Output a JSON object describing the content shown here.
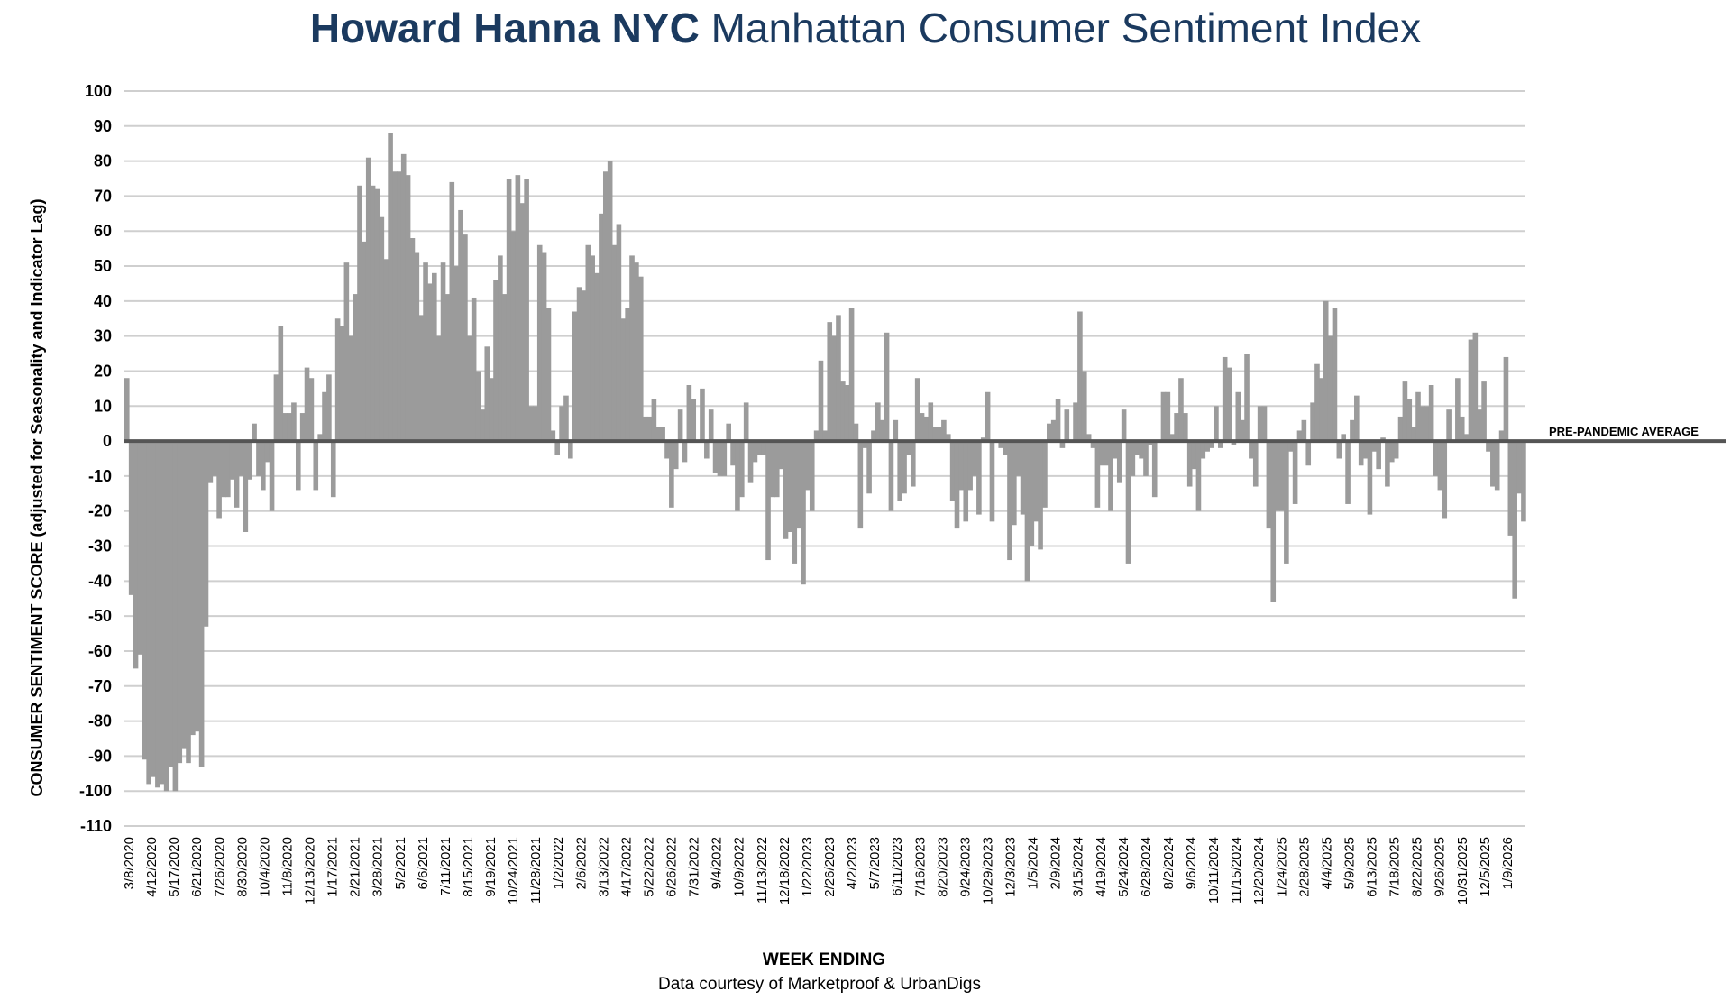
{
  "title_brand": "Howard Hanna NYC",
  "title_rest": "Manhattan Consumer Sentiment Index",
  "chart_data": {
    "type": "bar",
    "title": "Howard Hanna NYC Manhattan Consumer Sentiment Index",
    "xlabel": "WEEK ENDING",
    "ylabel": "CONSUMER SENTIMENT SCORE (adjusted for Seasonality and Indicator Lag)",
    "credit": "Data courtesy of Marketproof & UrbanDigs",
    "annotation": "PRE-PANDEMIC AVERAGE",
    "ylim": [
      -110,
      100
    ],
    "yticks": [
      100,
      90,
      80,
      70,
      60,
      50,
      40,
      30,
      20,
      10,
      0,
      -10,
      -20,
      -30,
      -40,
      -50,
      -60,
      -70,
      -80,
      -90,
      -100,
      -110
    ],
    "grid": true,
    "bar_color": "#9b9b9b",
    "baseline_color": "#555555",
    "x_tick_labels": [
      "3/8/2020",
      "4/12/2020",
      "5/17/2020",
      "6/21/2020",
      "7/26/2020",
      "8/30/2020",
      "10/4/2020",
      "11/8/2020",
      "12/13/2020",
      "1/17/2021",
      "2/21/2021",
      "3/28/2021",
      "5/2/2021",
      "6/6/2021",
      "7/11/2021",
      "8/15/2021",
      "9/19/2021",
      "10/24/2021",
      "11/28/2021",
      "1/2/2022",
      "2/6/2022",
      "3/13/2022",
      "4/17/2022",
      "5/22/2022",
      "6/26/2022",
      "7/31/2022",
      "9/4/2022",
      "10/9/2022",
      "11/13/2022",
      "12/18/2022",
      "1/22/2023",
      "2/26/2023",
      "4/2/2023",
      "5/7/2023",
      "6/11/2023",
      "7/16/2023",
      "8/20/2023",
      "9/24/2023",
      "10/29/2023",
      "12/3/2023",
      "1/5/2024",
      "2/9/2024",
      "3/15/2024",
      "4/19/2024",
      "5/24/2024",
      "6/28/2024",
      "8/2/2024",
      "9/6/2024",
      "10/11/2024",
      "11/15/2024",
      "12/20/2024",
      "1/24/2025",
      "2/28/2025",
      "4/4/2025",
      "5/9/2025",
      "6/13/2025",
      "7/18/2025",
      "8/22/2025",
      "9/26/2025",
      "10/31/2025",
      "12/5/2025",
      "1/9/2026"
    ],
    "values": [
      18,
      -44,
      -65,
      -61,
      -91,
      -98,
      -96,
      -99,
      -98,
      -100,
      -93,
      -100,
      -92,
      -88,
      -92,
      -84,
      -83,
      -93,
      -53,
      -12,
      -10,
      -22,
      -16,
      -16,
      -11,
      -19,
      -10,
      -26,
      -11,
      5,
      -10,
      -14,
      -6,
      -20,
      19,
      33,
      8,
      8,
      11,
      -14,
      8,
      21,
      18,
      -14,
      2,
      14,
      19,
      -16,
      35,
      33,
      51,
      30,
      42,
      73,
      57,
      81,
      73,
      72,
      64,
      52,
      88,
      77,
      77,
      82,
      76,
      58,
      54,
      36,
      51,
      45,
      48,
      30,
      51,
      42,
      74,
      50,
      66,
      59,
      30,
      41,
      20,
      9,
      27,
      18,
      46,
      53,
      42,
      75,
      60,
      76,
      68,
      75,
      10,
      10,
      56,
      54,
      38,
      3,
      -4,
      10,
      13,
      -5,
      37,
      44,
      43,
      56,
      53,
      48,
      65,
      77,
      80,
      56,
      62,
      35,
      38,
      53,
      51,
      47,
      7,
      7,
      12,
      4,
      4,
      -5,
      -19,
      -8,
      9,
      -6,
      16,
      12,
      0,
      15,
      -5,
      9,
      -9,
      -10,
      -10,
      5,
      -7,
      -20,
      -16,
      11,
      -12,
      -6,
      -4,
      -4,
      -34,
      -16,
      -16,
      -8,
      -28,
      -26,
      -35,
      -25,
      -41,
      -14,
      -20,
      3,
      23,
      3,
      34,
      30,
      36,
      17,
      16,
      38,
      5,
      -25,
      -2,
      -15,
      3,
      11,
      6,
      31,
      -20,
      6,
      -17,
      -15,
      -4,
      -13,
      18,
      8,
      7,
      11,
      4,
      4,
      6,
      2,
      -17,
      -25,
      -14,
      -23,
      -14,
      -10,
      -21,
      1,
      14,
      -23,
      0,
      -2,
      -4,
      -34,
      -24,
      -10,
      -21,
      -40,
      -30,
      -23,
      -31,
      -19,
      5,
      6,
      12,
      -2,
      9,
      0,
      11,
      37,
      20,
      2,
      -2,
      -19,
      -7,
      -7,
      -20,
      -5,
      -12,
      9,
      -35,
      -10,
      -4,
      -5,
      -10,
      -1,
      -16,
      0,
      14,
      14,
      2,
      8,
      18,
      8,
      -13,
      -8,
      -20,
      -5,
      -3,
      -2,
      10,
      -2,
      24,
      21,
      -1,
      14,
      6,
      25,
      -5,
      -13,
      10,
      10,
      -25,
      -46,
      -20,
      -20,
      -35,
      -3,
      -18,
      3,
      6,
      -7,
      11,
      22,
      18,
      40,
      30,
      38,
      -5,
      2,
      -18,
      6,
      13,
      -7,
      -5,
      -21,
      -3,
      -8,
      1,
      -13,
      -6,
      -5,
      7,
      17,
      12,
      4,
      14,
      10,
      10,
      16,
      -10,
      -14,
      -22,
      9,
      0,
      18,
      7,
      2,
      29,
      31,
      9,
      17,
      -3,
      -13,
      -14,
      3,
      24,
      -27,
      -45,
      -15,
      -23
    ]
  }
}
